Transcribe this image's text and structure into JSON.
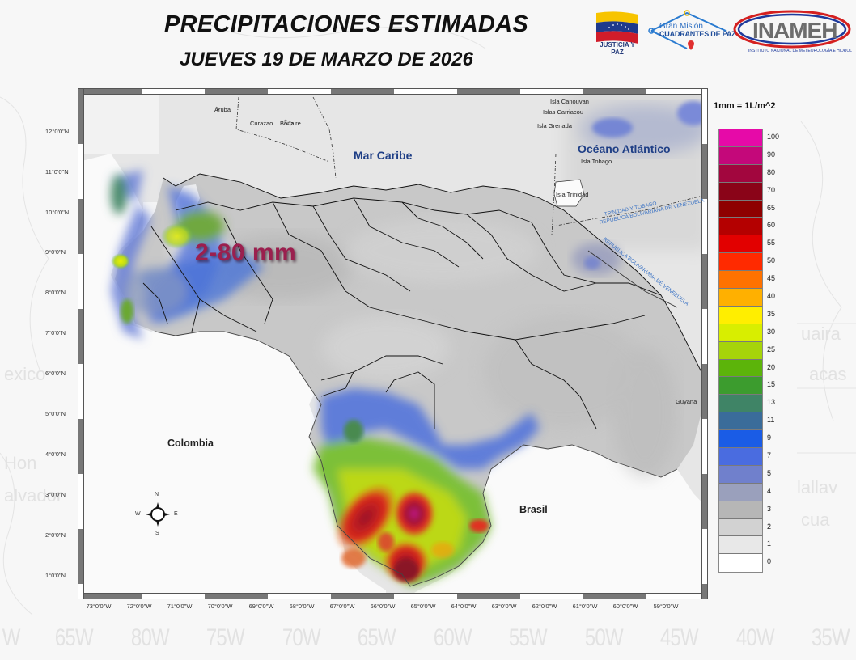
{
  "header": {
    "title": "PRECIPITACIONES ESTIMADAS",
    "subtitle": "JUEVES 19 DE MARZO DE 2026"
  },
  "logos": {
    "justicia": "JUSTICIA Y PAZ",
    "cuadrantes_line1": "Gran Misión",
    "cuadrantes_line2": "CUADRANTES DE PAZ",
    "inameh": "INAMEH",
    "inameh_sub": "INSTITUTO NACIONAL DE METEOROLOGÍA E HIDROLOGÍA"
  },
  "map": {
    "range_label": "2-80 mm",
    "lat_labels": [
      "12°0'0\"N",
      "11°0'0\"N",
      "10°0'0\"N",
      "9°0'0\"N",
      "8°0'0\"N",
      "7°0'0\"N",
      "6°0'0\"N",
      "5°0'0\"N",
      "4°0'0\"N",
      "3°0'0\"N",
      "2°0'0\"N",
      "1°0'0\"N"
    ],
    "lon_labels": [
      "73°0'0\"W",
      "72°0'0\"W",
      "71°0'0\"W",
      "70°0'0\"W",
      "69°0'0\"W",
      "68°0'0\"W",
      "67°0'0\"W",
      "66°0'0\"W",
      "65°0'0\"W",
      "64°0'0\"W",
      "63°0'0\"W",
      "62°0'0\"W",
      "61°0'0\"W",
      "60°0'0\"W",
      "59°0'0\"W"
    ],
    "places": {
      "aruba": "Aruba",
      "curazao": "Curazao",
      "bonaire": "Bonaire",
      "canouvan": "Isla Canouvan",
      "carriacou": "Islas Carriacou",
      "grenada": "Isla Grenada",
      "tobago": "Isla Tobago",
      "trinidad": "Isla Trinidad",
      "guyana": "Guyana"
    },
    "countries": {
      "colombia": "Colombia",
      "brasil": "Brasil"
    },
    "seas": {
      "caribe": "Mar Caribe",
      "atlantico": "Océano Atlántico"
    },
    "border_labels": {
      "tt": "TRINIDAD Y TOBAGO",
      "ven1": "REPUBLICA BOLIVARIANA DE VENEZUELA",
      "ven2": "REPUBLICA BOLIVARIANA DE VENEZUELA"
    },
    "compass": {
      "n": "N",
      "s": "S",
      "e": "E",
      "w": "W"
    }
  },
  "legend": {
    "unit": "1mm = 1L/m^2",
    "items": [
      {
        "value": "100",
        "color": "#e60aa8"
      },
      {
        "value": "90",
        "color": "#c4087a"
      },
      {
        "value": "80",
        "color": "#a2063e"
      },
      {
        "value": "70",
        "color": "#8a0418"
      },
      {
        "value": "65",
        "color": "#8e0000"
      },
      {
        "value": "60",
        "color": "#b40000"
      },
      {
        "value": "55",
        "color": "#e20000"
      },
      {
        "value": "50",
        "color": "#ff2a00"
      },
      {
        "value": "45",
        "color": "#ff7200"
      },
      {
        "value": "40",
        "color": "#ffb000"
      },
      {
        "value": "35",
        "color": "#ffee00"
      },
      {
        "value": "30",
        "color": "#d8ee00"
      },
      {
        "value": "25",
        "color": "#a6d40a"
      },
      {
        "value": "20",
        "color": "#5cb40a"
      },
      {
        "value": "15",
        "color": "#3c9c2e"
      },
      {
        "value": "13",
        "color": "#3f8466"
      },
      {
        "value": "11",
        "color": "#3a6c9a"
      },
      {
        "value": "9",
        "color": "#1a5ce6"
      },
      {
        "value": "7",
        "color": "#4a6ce0"
      },
      {
        "value": "5",
        "color": "#7080cc"
      },
      {
        "value": "4",
        "color": "#9aa0bc"
      },
      {
        "value": "3",
        "color": "#b6b6b6"
      },
      {
        "value": "2",
        "color": "#d2d2d2"
      },
      {
        "value": "1",
        "color": "#e8e8e8"
      },
      {
        "value": "0",
        "color": "#ffffff"
      }
    ]
  },
  "watermark": {
    "bottom_labels": [
      "W",
      "65W",
      "80W",
      "75W",
      "70W",
      "65W",
      "60W",
      "55W",
      "50W",
      "45W",
      "40W",
      "35W"
    ]
  }
}
